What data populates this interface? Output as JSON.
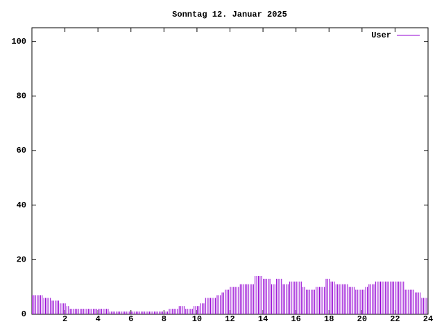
{
  "chart_data": {
    "type": "impulses",
    "title": "Sonntag 12. Januar 2025",
    "xlim": [
      0,
      24
    ],
    "xticks": [
      2,
      4,
      6,
      8,
      10,
      12,
      14,
      16,
      18,
      20,
      22,
      24
    ],
    "ylim": [
      0,
      105
    ],
    "yticks": [
      0,
      20,
      40,
      60,
      80,
      100
    ],
    "legend": "top-right",
    "x": [
      0,
      0.1,
      0.2,
      0.3,
      0.4,
      0.5,
      0.6,
      0.7,
      0.8,
      0.9,
      1,
      1.1,
      1.2,
      1.3,
      1.4,
      1.5,
      1.6,
      1.7,
      1.8,
      1.9,
      2,
      2.1,
      2.2,
      2.3,
      2.4,
      2.5,
      2.6,
      2.7,
      2.8,
      2.9,
      3,
      3.1,
      3.2,
      3.3,
      3.4,
      3.5,
      3.6,
      3.7,
      3.8,
      3.9,
      4,
      4.1,
      4.2,
      4.3,
      4.4,
      4.5,
      4.6,
      4.7,
      4.8,
      4.9,
      5,
      5.1,
      5.2,
      5.3,
      5.4,
      5.5,
      5.6,
      5.7,
      5.8,
      5.9,
      6,
      6.1,
      6.2,
      6.3,
      6.4,
      6.5,
      6.6,
      6.7,
      6.8,
      6.9,
      7,
      7.1,
      7.2,
      7.3,
      7.4,
      7.5,
      7.6,
      7.7,
      7.8,
      7.9,
      8,
      8.1,
      8.2,
      8.3,
      8.4,
      8.5,
      8.6,
      8.7,
      8.8,
      8.9,
      9,
      9.1,
      9.2,
      9.3,
      9.4,
      9.5,
      9.6,
      9.7,
      9.8,
      9.9,
      10,
      10.1,
      10.2,
      10.3,
      10.4,
      10.5,
      10.6,
      10.7,
      10.8,
      10.9,
      11,
      11.1,
      11.2,
      11.3,
      11.4,
      11.5,
      11.6,
      11.7,
      11.8,
      11.9,
      12,
      12.1,
      12.2,
      12.3,
      12.4,
      12.5,
      12.6,
      12.7,
      12.8,
      12.9,
      13,
      13.1,
      13.2,
      13.3,
      13.4,
      13.5,
      13.6,
      13.7,
      13.8,
      13.9,
      14,
      14.1,
      14.2,
      14.3,
      14.4,
      14.5,
      14.6,
      14.7,
      14.8,
      14.9,
      15,
      15.1,
      15.2,
      15.3,
      15.4,
      15.5,
      15.6,
      15.7,
      15.8,
      15.9,
      16,
      16.1,
      16.2,
      16.3,
      16.4,
      16.5,
      16.6,
      16.7,
      16.8,
      16.9,
      17,
      17.1,
      17.2,
      17.3,
      17.4,
      17.5,
      17.6,
      17.7,
      17.8,
      17.9,
      18,
      18.1,
      18.2,
      18.3,
      18.4,
      18.5,
      18.6,
      18.7,
      18.8,
      18.9,
      19,
      19.1,
      19.2,
      19.3,
      19.4,
      19.5,
      19.6,
      19.7,
      19.8,
      19.9,
      20,
      20.1,
      20.2,
      20.3,
      20.4,
      20.5,
      20.6,
      20.7,
      20.8,
      20.9,
      21,
      21.1,
      21.2,
      21.3,
      21.4,
      21.5,
      21.6,
      21.7,
      21.8,
      21.9,
      22,
      22.1,
      22.2,
      22.3,
      22.4,
      22.5,
      22.6,
      22.7,
      22.8,
      22.9,
      23,
      23.1,
      23.2,
      23.3,
      23.4,
      23.5,
      23.6,
      23.7,
      23.8,
      23.9
    ],
    "series": [
      {
        "name": "User",
        "color": "#9400d3",
        "values": [
          7,
          7,
          7,
          7,
          7,
          7,
          7,
          6,
          6,
          6,
          6,
          6,
          5,
          5,
          5,
          5,
          5,
          4,
          4,
          4,
          4,
          3,
          3,
          2,
          2,
          2,
          2,
          2,
          2,
          2,
          2,
          2,
          2,
          2,
          2,
          2,
          2,
          2,
          2,
          2,
          2,
          2,
          2,
          2,
          2,
          2,
          2,
          1,
          1,
          1,
          1,
          1,
          1,
          1,
          1,
          1,
          1,
          1,
          1,
          1,
          1,
          1,
          1,
          1,
          1,
          1,
          1,
          1,
          1,
          1,
          1,
          1,
          1,
          1,
          1,
          1,
          1,
          1,
          1,
          1,
          1,
          1,
          1,
          2,
          2,
          2,
          2,
          2,
          2,
          3,
          3,
          3,
          3,
          2,
          2,
          2,
          2,
          2,
          3,
          3,
          3,
          3,
          4,
          4,
          4,
          6,
          6,
          6,
          6,
          6,
          6,
          6,
          7,
          7,
          7,
          8,
          8,
          9,
          9,
          9,
          10,
          10,
          10,
          10,
          10,
          10,
          11,
          11,
          11,
          11,
          11,
          11,
          11,
          11,
          11,
          14,
          14,
          14,
          14,
          14,
          13,
          13,
          13,
          13,
          13,
          11,
          11,
          11,
          13,
          13,
          13,
          13,
          11,
          11,
          11,
          11,
          12,
          12,
          12,
          12,
          12,
          12,
          12,
          12,
          10,
          10,
          9,
          9,
          9,
          9,
          9,
          9,
          10,
          10,
          10,
          10,
          10,
          10,
          13,
          13,
          13,
          12,
          12,
          12,
          11,
          11,
          11,
          11,
          11,
          11,
          11,
          11,
          10,
          10,
          10,
          10,
          9,
          9,
          9,
          9,
          9,
          9,
          10,
          10,
          11,
          11,
          11,
          11,
          12,
          12,
          12,
          12,
          12,
          12,
          12,
          12,
          12,
          12,
          12,
          12,
          12,
          12,
          12,
          12,
          12,
          12,
          9,
          9,
          9,
          9,
          9,
          9,
          8,
          8,
          8,
          8,
          6,
          6,
          6,
          6
        ]
      }
    ]
  }
}
